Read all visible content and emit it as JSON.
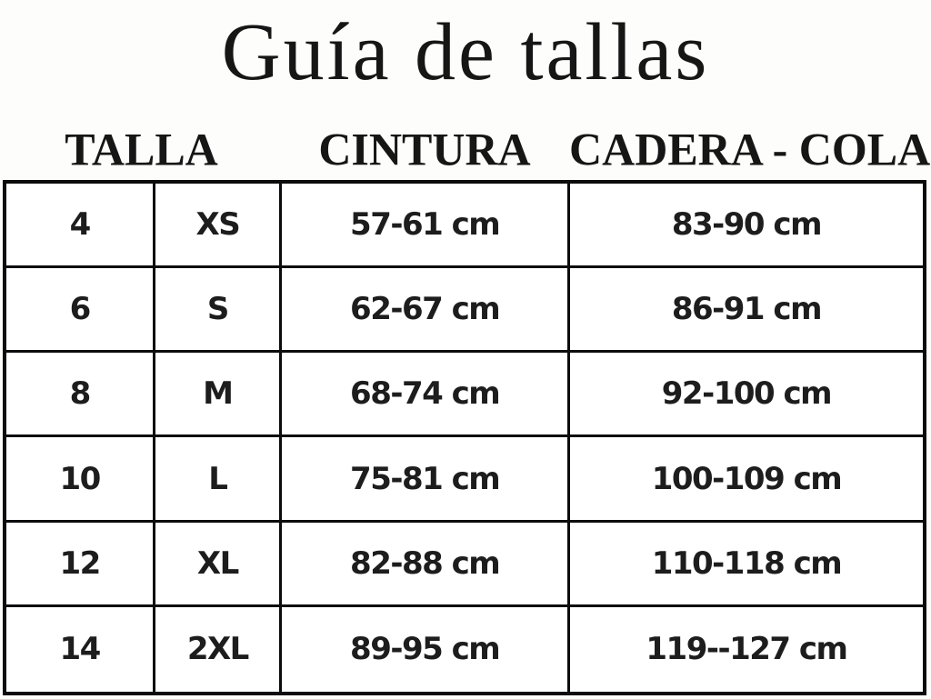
{
  "page": {
    "background": "#fdfdfc",
    "text_color": "#1b1b1b",
    "border_color": "#0c0c0c"
  },
  "chart_data": {
    "type": "table",
    "title": "Guía de tallas",
    "columns": [
      "TALLA",
      "CINTURA",
      "CADERA - COLA"
    ],
    "rows": [
      [
        "4",
        "XS",
        "57-61 cm",
        "83-90 cm"
      ],
      [
        "6",
        "S",
        "62-67 cm",
        "86-91 cm"
      ],
      [
        "8",
        "M",
        "68-74 cm",
        "92-100 cm"
      ],
      [
        "10",
        "L",
        "75-81 cm",
        "100-109 cm"
      ],
      [
        "12",
        "XL",
        "82-88 cm",
        "110-118 cm"
      ],
      [
        "14",
        "2XL",
        "89-95 cm",
        "119--127 cm"
      ]
    ],
    "layout": {
      "header_spans": {
        "TALLA": [
          "size-number",
          "size-letter"
        ],
        "CINTURA": [
          "waist"
        ],
        "CADERA - COLA": [
          "hip"
        ]
      },
      "grid": "6 rows x 4 columns, black borders, white cells"
    }
  }
}
